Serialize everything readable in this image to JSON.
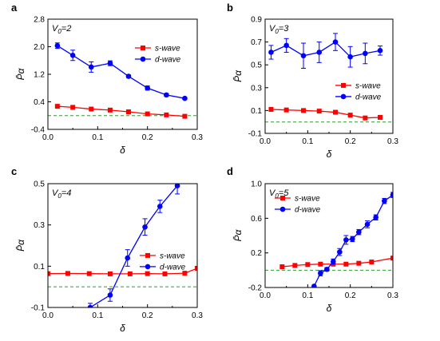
{
  "chart_data": [
    {
      "type": "line",
      "panel": "a",
      "annotation": "V0=2",
      "annotation_main": "V",
      "annotation_sub": "0",
      "annotation_rest": "=2",
      "xlabel": "δ",
      "ylabel": "P̄α",
      "xlim": [
        0,
        0.3
      ],
      "ylim": [
        -0.4,
        2.8
      ],
      "xticks": [
        0.0,
        0.1,
        0.2,
        0.3
      ],
      "xtick_labels": [
        "0.0",
        "0.1",
        "0.2",
        "0.3"
      ],
      "yticks": [
        -0.4,
        0.4,
        1.2,
        2.0,
        2.8
      ],
      "ytick_labels": [
        "-0.4",
        "0.4",
        "1.2",
        "2.0",
        "2.8"
      ],
      "legend": "top-right",
      "reference_line": 0,
      "series": [
        {
          "name": "s-wave",
          "color": "#ff0000",
          "marker": "square",
          "x": [
            0.019,
            0.05,
            0.087,
            0.125,
            0.162,
            0.2,
            0.238,
            0.275
          ],
          "y": [
            0.27,
            0.24,
            0.19,
            0.16,
            0.11,
            0.05,
            0.02,
            -0.02
          ],
          "err": [
            0,
            0,
            0,
            0,
            0,
            0,
            0,
            0
          ]
        },
        {
          "name": "d-wave",
          "color": "#0000ff",
          "marker": "circle",
          "x": [
            0.019,
            0.05,
            0.087,
            0.125,
            0.162,
            0.2,
            0.238,
            0.275
          ],
          "y": [
            2.03,
            1.75,
            1.41,
            1.52,
            1.14,
            0.8,
            0.6,
            0.5
          ],
          "err": [
            0.08,
            0.15,
            0.15,
            0.07,
            0.04,
            0.06,
            0.04,
            0.03
          ]
        }
      ]
    },
    {
      "type": "line",
      "panel": "b",
      "annotation": "V0=3",
      "annotation_main": "V",
      "annotation_sub": "0",
      "annotation_rest": "=3",
      "xlabel": "δ",
      "ylabel": "P̄α",
      "xlim": [
        0,
        0.3
      ],
      "ylim": [
        -0.1,
        0.9
      ],
      "xticks": [
        0.0,
        0.1,
        0.2,
        0.3
      ],
      "xtick_labels": [
        "0.0",
        "0.1",
        "0.2",
        "0.3"
      ],
      "yticks": [
        -0.1,
        0.1,
        0.3,
        0.5,
        0.7,
        0.9
      ],
      "ytick_labels": [
        "-0.1",
        "0.1",
        "0.3",
        "0.5",
        "0.7",
        "0.9"
      ],
      "legend": "center-right",
      "reference_line": 0,
      "series": [
        {
          "name": "s-wave",
          "color": "#ff0000",
          "marker": "square",
          "x": [
            0.014,
            0.05,
            0.09,
            0.127,
            0.165,
            0.2,
            0.235,
            0.27
          ],
          "y": [
            0.11,
            0.105,
            0.1,
            0.095,
            0.085,
            0.06,
            0.035,
            0.04
          ],
          "err": [
            0,
            0,
            0,
            0,
            0,
            0,
            0,
            0
          ]
        },
        {
          "name": "d-wave",
          "color": "#0000ff",
          "marker": "circle",
          "x": [
            0.014,
            0.05,
            0.09,
            0.127,
            0.165,
            0.2,
            0.235,
            0.27
          ],
          "y": [
            0.61,
            0.67,
            0.58,
            0.61,
            0.7,
            0.57,
            0.6,
            0.625
          ],
          "err": [
            0.06,
            0.06,
            0.11,
            0.09,
            0.075,
            0.09,
            0.09,
            0.04
          ]
        }
      ]
    },
    {
      "type": "line",
      "panel": "c",
      "annotation": "V0=4",
      "annotation_main": "V",
      "annotation_sub": "0",
      "annotation_rest": "=4",
      "xlabel": "δ",
      "ylabel": "P̄α",
      "xlim": [
        0,
        0.3
      ],
      "ylim": [
        -0.1,
        0.5
      ],
      "xticks": [
        0.0,
        0.1,
        0.2,
        0.3
      ],
      "xtick_labels": [
        "0.0",
        "0.1",
        "0.2",
        "0.3"
      ],
      "yticks": [
        -0.1,
        0.1,
        0.3,
        0.5
      ],
      "ytick_labels": [
        "-0.1",
        "0.1",
        "0.3",
        "0.5"
      ],
      "legend": "center-right",
      "reference_line": 0,
      "series": [
        {
          "name": "s-wave",
          "color": "#ff0000",
          "marker": "square",
          "x": [
            0.0,
            0.04,
            0.083,
            0.125,
            0.165,
            0.2,
            0.235,
            0.275,
            0.3
          ],
          "y": [
            0.064,
            0.065,
            0.064,
            0.063,
            0.063,
            0.064,
            0.063,
            0.066,
            0.09
          ],
          "err": [
            0,
            0,
            0,
            0,
            0,
            0,
            0,
            0,
            0
          ]
        },
        {
          "name": "d-wave",
          "color": "#0000ff",
          "marker": "circle",
          "x": [
            0.085,
            0.125,
            0.16,
            0.195,
            0.225,
            0.26
          ],
          "y": [
            -0.1,
            -0.04,
            0.14,
            0.29,
            0.39,
            0.49
          ],
          "err": [
            0.02,
            0.03,
            0.04,
            0.04,
            0.03,
            0.04
          ]
        }
      ]
    },
    {
      "type": "line",
      "panel": "d",
      "annotation": "V0=5",
      "annotation_main": "V",
      "annotation_sub": "0",
      "annotation_rest": "=5",
      "xlabel": "δ",
      "ylabel": "P̄α",
      "xlim": [
        0,
        0.3
      ],
      "ylim": [
        -0.2,
        1.0
      ],
      "xticks": [
        0.0,
        0.1,
        0.2,
        0.3
      ],
      "xtick_labels": [
        "0.0",
        "0.1",
        "0.2",
        "0.3"
      ],
      "yticks": [
        -0.2,
        0.2,
        0.6,
        1.0
      ],
      "ytick_labels": [
        "-0.2",
        "0.2",
        "0.6",
        "1.0"
      ],
      "legend": "top-left",
      "reference_line": 0,
      "series": [
        {
          "name": "s-wave",
          "color": "#ff0000",
          "marker": "square",
          "x": [
            0.04,
            0.07,
            0.1,
            0.13,
            0.16,
            0.19,
            0.22,
            0.25,
            0.3
          ],
          "y": [
            0.04,
            0.055,
            0.065,
            0.07,
            0.07,
            0.07,
            0.08,
            0.095,
            0.14
          ],
          "err": [
            0,
            0,
            0,
            0,
            0,
            0,
            0,
            0,
            0
          ]
        },
        {
          "name": "d-wave",
          "color": "#0000ff",
          "marker": "circle",
          "x": [
            0.115,
            0.13,
            0.145,
            0.16,
            0.175,
            0.19,
            0.205,
            0.22,
            0.24,
            0.26,
            0.28,
            0.3
          ],
          "y": [
            -0.185,
            -0.035,
            0.01,
            0.1,
            0.21,
            0.35,
            0.36,
            0.44,
            0.53,
            0.61,
            0.8,
            0.87
          ],
          "err": [
            0,
            0.03,
            0.02,
            0.03,
            0.04,
            0.05,
            0.03,
            0.03,
            0.04,
            0.03,
            0.03,
            0.03
          ]
        }
      ]
    }
  ]
}
